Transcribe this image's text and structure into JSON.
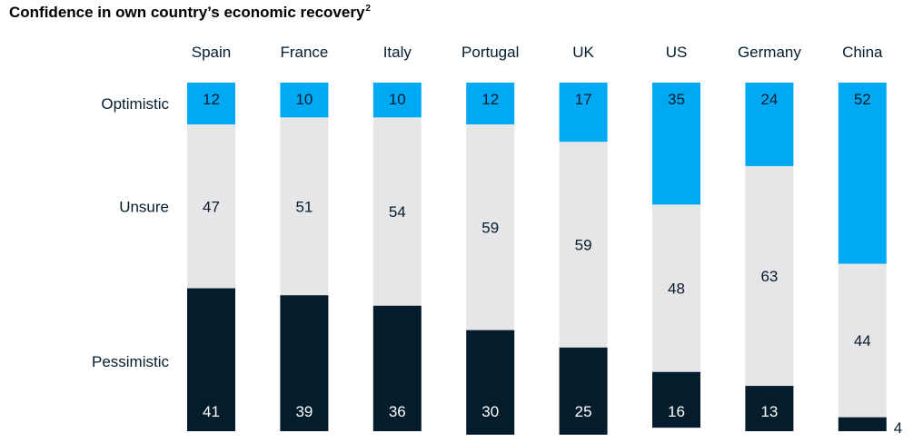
{
  "title": "Confidence in own country’s economic  recovery",
  "footnote_marker": "2",
  "chart_data": {
    "type": "bar",
    "stacked": "100%",
    "categories": [
      "Spain",
      "France",
      "Italy",
      "Portugal",
      "UK",
      "US",
      "Germany",
      "China"
    ],
    "series": [
      {
        "name": "Optimistic",
        "values": [
          12,
          10,
          10,
          12,
          17,
          35,
          24,
          52
        ]
      },
      {
        "name": "Unsure",
        "values": [
          47,
          51,
          54,
          59,
          59,
          48,
          63,
          44
        ]
      },
      {
        "name": "Pessimistic",
        "values": [
          41,
          39,
          36,
          30,
          25,
          16,
          13,
          4
        ]
      }
    ],
    "colors": {
      "Optimistic": "#00a9f4",
      "Unsure": "#e6e6e8",
      "Pessimistic": "#051c2c"
    },
    "label_colors": {
      "Optimistic": "#051c2c",
      "Unsure": "#051c2c",
      "Pessimistic": "#ffffff"
    },
    "legend": "left",
    "grid": false,
    "ylim": [
      0,
      100
    ]
  }
}
